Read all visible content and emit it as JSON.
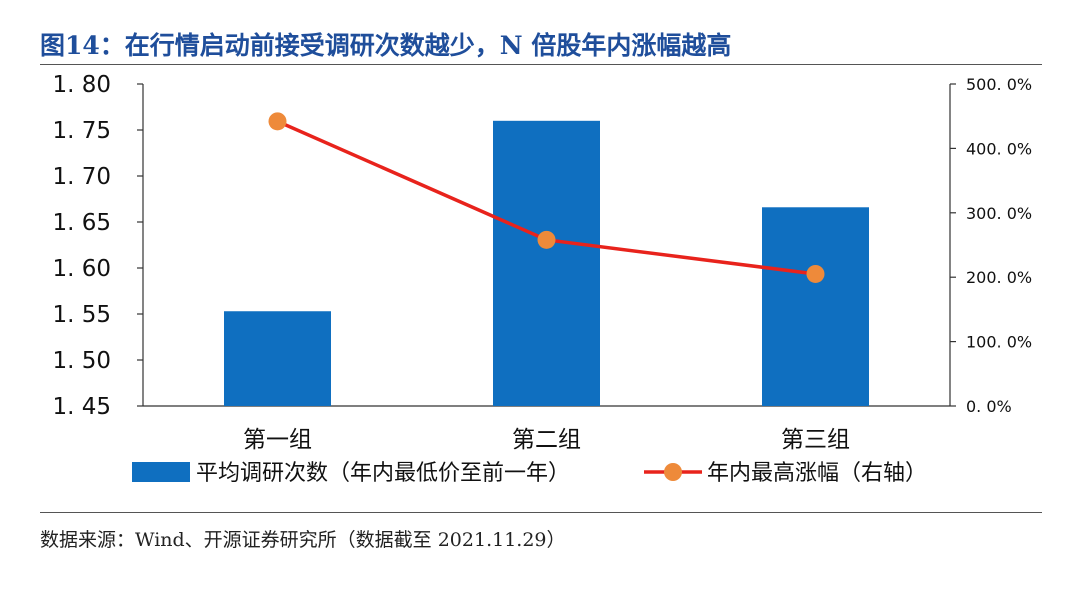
{
  "header": {
    "title": "图14：在行情启动前接受调研次数越少，N 倍股年内涨幅越高"
  },
  "footer": {
    "source": "数据来源：Wind、开源证券研究所（数据截至 2021.11.29）"
  },
  "colors": {
    "title": "#1f4e9b",
    "bar": "#0f6fc0",
    "line": "#e8231c",
    "marker": "#ee8a3a"
  },
  "chart_data": {
    "type": "bar",
    "categories": [
      "第一组",
      "第二组",
      "第三组"
    ],
    "series": [
      {
        "name": "平均调研次数（年内最低价至前一年）",
        "type": "bar",
        "axis": "left",
        "values": [
          1.553,
          1.76,
          1.666
        ]
      },
      {
        "name": "年内最高涨幅（右轴）",
        "type": "line",
        "axis": "right",
        "values": [
          4.42,
          2.58,
          2.05
        ]
      }
    ],
    "y_left": {
      "ylim": [
        1.45,
        1.8
      ],
      "ticks": [
        1.8,
        1.75,
        1.7,
        1.65,
        1.6,
        1.55,
        1.5,
        1.45
      ],
      "tick_labels": [
        "1. 80",
        "1. 75",
        "1. 70",
        "1. 65",
        "1. 60",
        "1. 55",
        "1. 50",
        "1. 45"
      ]
    },
    "y_right": {
      "ylim": [
        0,
        5
      ],
      "ticks": [
        5,
        4,
        3,
        2,
        1,
        0
      ],
      "tick_labels": [
        "500. 0%",
        "400. 0%",
        "300. 0%",
        "200. 0%",
        "100. 0%",
        "0. 0%"
      ]
    },
    "grid": false,
    "legend_position": "bottom"
  }
}
